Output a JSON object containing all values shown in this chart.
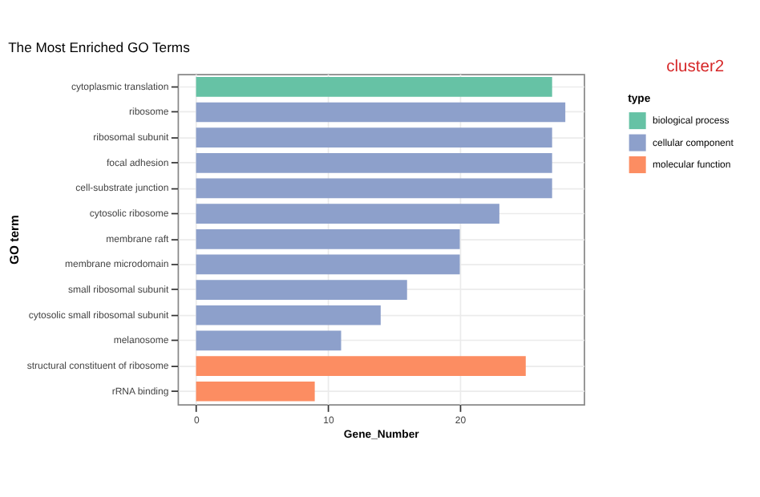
{
  "chart_data": {
    "type": "bar",
    "orientation": "horizontal",
    "title": "The Most Enriched GO Terms",
    "xlabel": "Gene_Number",
    "ylabel": "GO term",
    "legend_title": "type",
    "categories": [
      "cytoplasmic translation",
      "ribosome",
      "ribosomal subunit",
      "focal adhesion",
      "cell-substrate junction",
      "cytosolic ribosome",
      "membrane raft",
      "membrane microdomain",
      "small ribosomal subunit",
      "cytosolic small ribosomal subunit",
      "melanosome",
      "structural constituent of ribosome",
      "rRNA binding"
    ],
    "series": [
      {
        "name": "biological process",
        "color": "#66c2a5",
        "values": [
          27,
          null,
          null,
          null,
          null,
          null,
          null,
          null,
          null,
          null,
          null,
          null,
          null
        ]
      },
      {
        "name": "cellular component",
        "color": "#8da0cb",
        "values": [
          null,
          28,
          27,
          27,
          27,
          23,
          20,
          20,
          16,
          14,
          11,
          null,
          null
        ]
      },
      {
        "name": "molecular function",
        "color": "#fc8d62",
        "values": [
          null,
          null,
          null,
          null,
          null,
          null,
          null,
          null,
          null,
          null,
          null,
          25,
          9
        ]
      }
    ],
    "xlim": [
      -1.4,
      29.4
    ],
    "xticks": [
      0,
      10,
      20
    ],
    "grid": true,
    "legend": "right",
    "annotations": [
      "cluster2"
    ]
  }
}
